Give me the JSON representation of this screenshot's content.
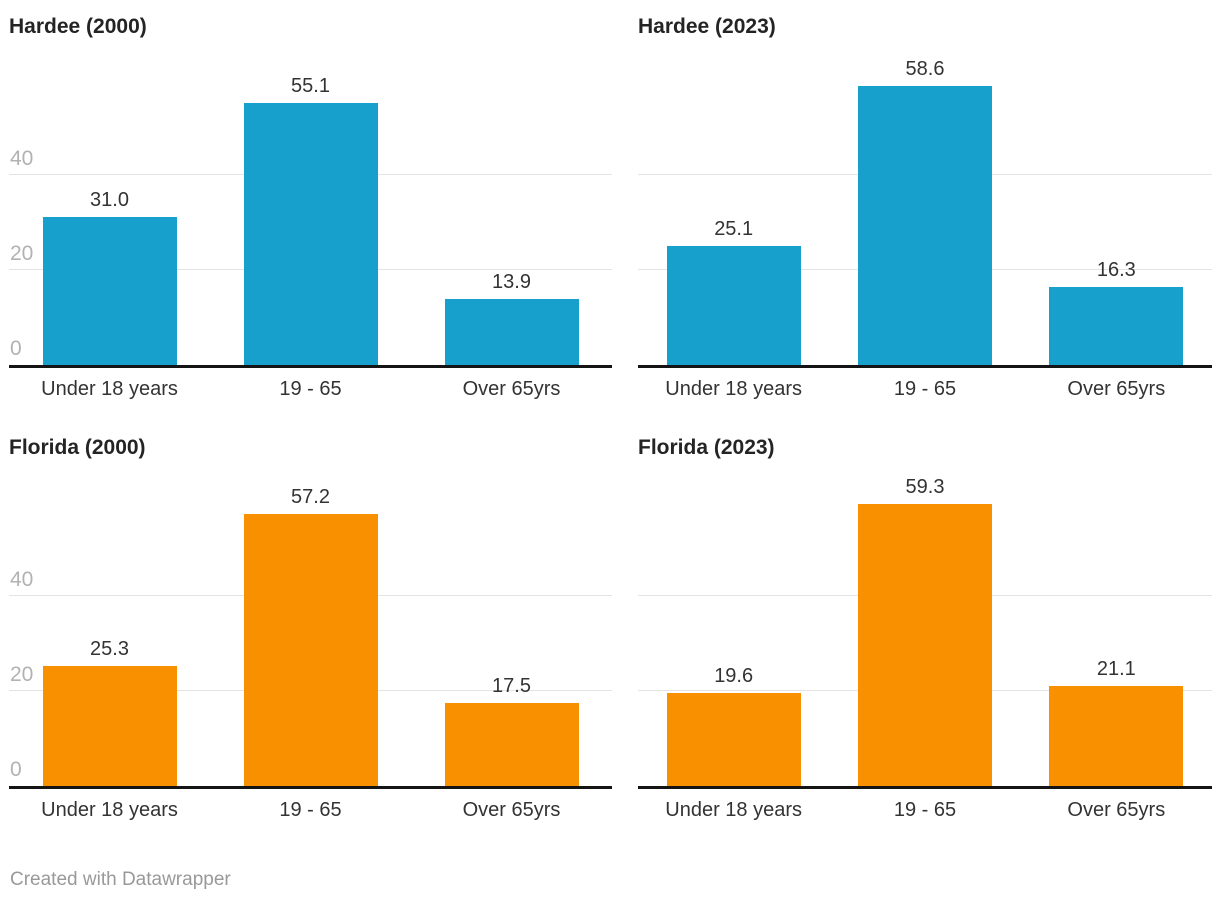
{
  "colors": {
    "blue": "#18a0cd",
    "orange": "#f89000",
    "gridline": "#e4e4e4",
    "axis_line": "#141414",
    "ytick_text": "#b2b2b2",
    "title_text": "#242424",
    "label_text": "#333333",
    "footer_text": "#999999"
  },
  "footer": {
    "attribution": "Created with Datawrapper"
  },
  "chart_data": [
    {
      "type": "bar",
      "title": "Hardee (2000)",
      "categories": [
        "Under 18 years",
        "19 - 65",
        "Over 65yrs"
      ],
      "values": [
        31.0,
        55.1,
        13.9
      ],
      "value_labels": [
        "31.0",
        "55.1",
        "13.9"
      ],
      "bar_color": "#18a0cd",
      "xlabel": "",
      "ylabel": "",
      "ylim": [
        0,
        62
      ],
      "yticks": [
        0,
        20,
        40
      ],
      "ytick_labels": [
        "0",
        "20",
        "40"
      ],
      "show_ytick_labels": true,
      "grid": true,
      "legend": "none"
    },
    {
      "type": "bar",
      "title": "Hardee (2023)",
      "categories": [
        "Under 18 years",
        "19 - 65",
        "Over 65yrs"
      ],
      "values": [
        25.1,
        58.6,
        16.3
      ],
      "value_labels": [
        "25.1",
        "58.6",
        "16.3"
      ],
      "bar_color": "#18a0cd",
      "xlabel": "",
      "ylabel": "",
      "ylim": [
        0,
        62
      ],
      "yticks": [
        0,
        20,
        40
      ],
      "ytick_labels": [
        "0",
        "20",
        "40"
      ],
      "show_ytick_labels": false,
      "grid": true,
      "legend": "none"
    },
    {
      "type": "bar",
      "title": "Florida (2000)",
      "categories": [
        "Under 18 years",
        "19 - 65",
        "Over 65yrs"
      ],
      "values": [
        25.3,
        57.2,
        17.5
      ],
      "value_labels": [
        "25.3",
        "57.2",
        "17.5"
      ],
      "bar_color": "#f89000",
      "xlabel": "",
      "ylabel": "",
      "ylim": [
        0,
        62
      ],
      "yticks": [
        0,
        20,
        40
      ],
      "ytick_labels": [
        "0",
        "20",
        "40"
      ],
      "show_ytick_labels": true,
      "grid": true,
      "legend": "none"
    },
    {
      "type": "bar",
      "title": "Florida (2023)",
      "categories": [
        "Under 18 years",
        "19 - 65",
        "Over 65yrs"
      ],
      "values": [
        19.6,
        59.3,
        21.1
      ],
      "value_labels": [
        "19.6",
        "59.3",
        "21.1"
      ],
      "bar_color": "#f89000",
      "xlabel": "",
      "ylabel": "",
      "ylim": [
        0,
        62
      ],
      "yticks": [
        0,
        20,
        40
      ],
      "ytick_labels": [
        "0",
        "20",
        "40"
      ],
      "show_ytick_labels": false,
      "grid": true,
      "legend": "none"
    }
  ]
}
